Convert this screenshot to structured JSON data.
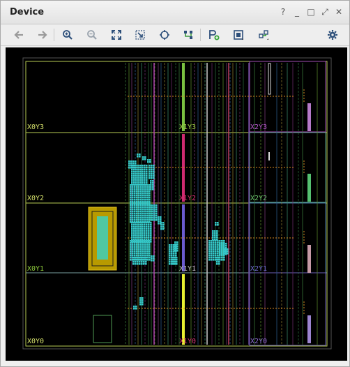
{
  "window": {
    "title": "Device"
  },
  "title_controls": {
    "help": "?",
    "minimize": "_",
    "restore": "□",
    "float": "⤢",
    "close": "✕"
  },
  "toolbar": {
    "items": [
      "back",
      "forward",
      "zoom-in",
      "zoom-out",
      "zoom-fit",
      "zoom-selection",
      "select-center",
      "route",
      "add-pblock",
      "show-cells",
      "connectivity",
      "settings"
    ]
  },
  "device": {
    "clock_regions": [
      {
        "label": "X0Y3",
        "color": "#d7e36c"
      },
      {
        "label": "X1Y3",
        "color": "#a6d64a"
      },
      {
        "label": "X2Y3",
        "color": "#b35bc8"
      },
      {
        "label": "X0Y2",
        "color": "#d7e36c"
      },
      {
        "label": "X1Y2",
        "color": "#cf2f6a"
      },
      {
        "label": "X2Y2",
        "color": "#6cc16c"
      },
      {
        "label": "X0Y1",
        "color": "#8fcc3c"
      },
      {
        "label": "X1Y1",
        "color": "#bbbbbb"
      },
      {
        "label": "X2Y1",
        "color": "#6d6dcc"
      },
      {
        "label": "X0Y0",
        "color": "#d7e36c"
      },
      {
        "label": "X1Y0",
        "color": "#cf2f6a"
      },
      {
        "label": "X2Y0",
        "color": "#8a6ccf"
      }
    ],
    "colors": {
      "region_border_x0": "#c6d85a",
      "region_border_x2_top": "#b256c7",
      "region_border_x2_mid": "#5aa890",
      "cells": "#35c8c8",
      "pblock": "#c8a600",
      "pblock_inner": "#4fc8a0"
    }
  }
}
